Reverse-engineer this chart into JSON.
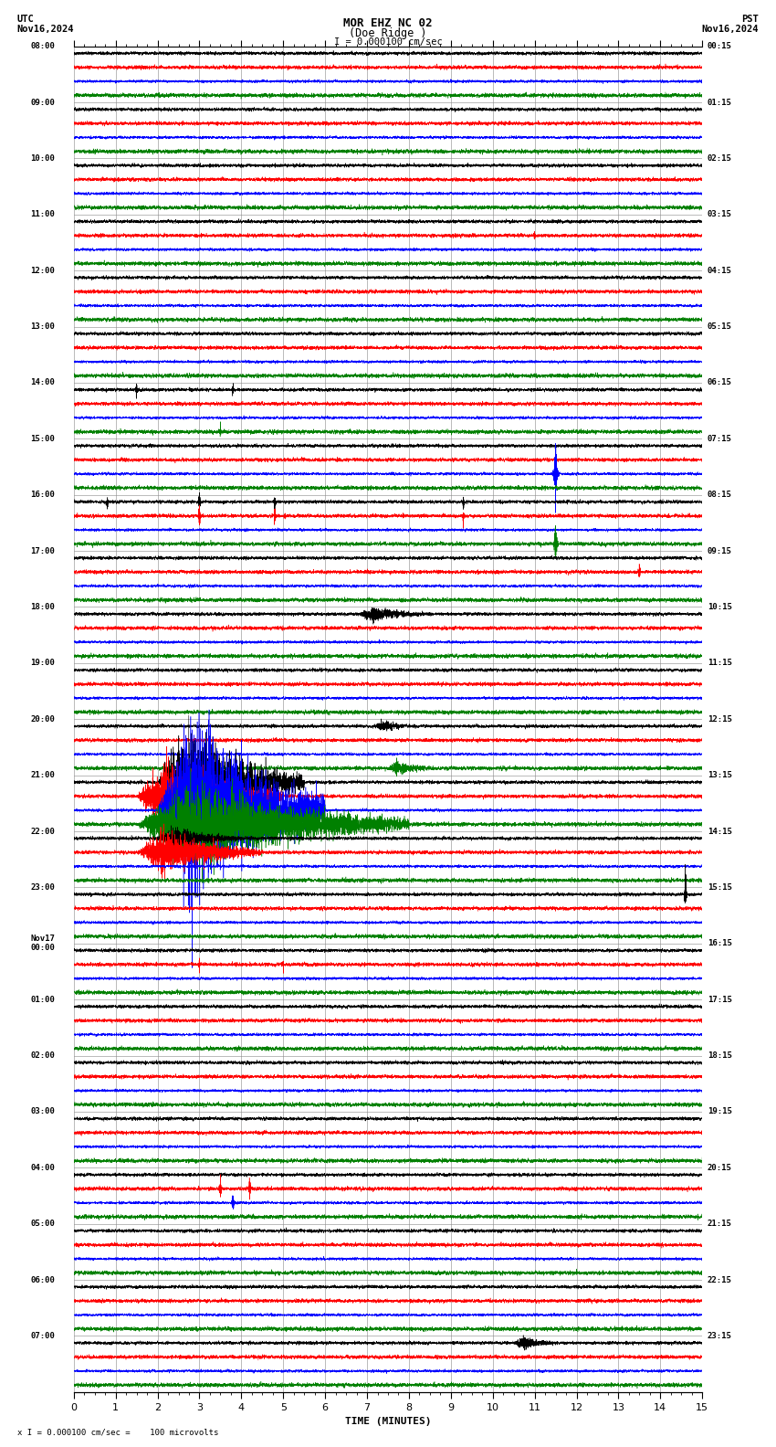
{
  "title_line1": "MOR EHZ NC 02",
  "title_line2": "(Doe Ridge )",
  "scale_text": "I = 0.000100 cm/sec",
  "bottom_scale_text": "x I = 0.000100 cm/sec =    100 microvolts",
  "utc_label": "UTC",
  "utc_date": "Nov16,2024",
  "pst_label": "PST",
  "pst_date": "Nov16,2024",
  "xlabel": "TIME (MINUTES)",
  "left_times_utc": [
    "08:00",
    "09:00",
    "10:00",
    "11:00",
    "12:00",
    "13:00",
    "14:00",
    "15:00",
    "16:00",
    "17:00",
    "18:00",
    "19:00",
    "20:00",
    "21:00",
    "22:00",
    "23:00",
    "Nov17\n00:00",
    "01:00",
    "02:00",
    "03:00",
    "04:00",
    "05:00",
    "06:00",
    "07:00"
  ],
  "right_times_pst": [
    "00:15",
    "01:15",
    "02:15",
    "03:15",
    "04:15",
    "05:15",
    "06:15",
    "07:15",
    "08:15",
    "09:15",
    "10:15",
    "11:15",
    "12:15",
    "13:15",
    "14:15",
    "15:15",
    "16:15",
    "17:15",
    "18:15",
    "19:15",
    "20:15",
    "21:15",
    "22:15",
    "23:15"
  ],
  "num_rows": 24,
  "traces_per_row": 4,
  "trace_colors": [
    "black",
    "red",
    "blue",
    "green"
  ],
  "bg_color": "white",
  "grid_color": "#aaaaaa",
  "x_min": 0,
  "x_max": 15,
  "x_ticks": [
    0,
    1,
    2,
    3,
    4,
    5,
    6,
    7,
    8,
    9,
    10,
    11,
    12,
    13,
    14,
    15
  ]
}
